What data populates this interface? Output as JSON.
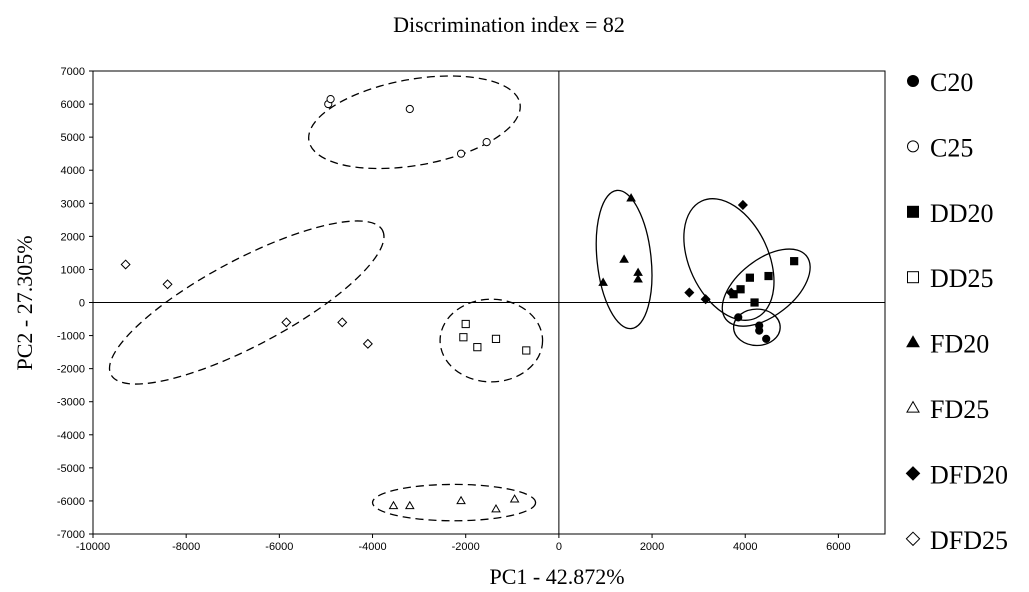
{
  "chart_data": {
    "type": "scatter",
    "title": "Discrimination index = 82",
    "xlabel": "PC1 - 42.872%",
    "ylabel": "PC2 - 27.305%",
    "xlim": [
      -10000,
      7000
    ],
    "ylim": [
      -7000,
      7000
    ],
    "x_ticks": [
      -10000,
      -8000,
      -6000,
      -4000,
      -2000,
      0,
      2000,
      4000,
      6000
    ],
    "y_ticks": [
      7000,
      6000,
      5000,
      4000,
      3000,
      2000,
      1000,
      0,
      -1000,
      -2000,
      -3000,
      -4000,
      -5000,
      -6000,
      -7000
    ],
    "legend_position": "right",
    "series": [
      {
        "name": "C20",
        "marker": "filled-circle",
        "points": [
          [
            3850,
            -450
          ],
          [
            4300,
            -700
          ],
          [
            4300,
            -850
          ],
          [
            4450,
            -1100
          ]
        ]
      },
      {
        "name": "C25",
        "marker": "open-circle",
        "points": [
          [
            -4950,
            6000
          ],
          [
            -4900,
            6150
          ],
          [
            -3200,
            5850
          ],
          [
            -2100,
            4500
          ],
          [
            -1550,
            4850
          ]
        ]
      },
      {
        "name": "DD20",
        "marker": "filled-square",
        "points": [
          [
            3750,
            250
          ],
          [
            3900,
            400
          ],
          [
            4100,
            750
          ],
          [
            4200,
            0
          ],
          [
            4500,
            800
          ],
          [
            5050,
            1250
          ]
        ]
      },
      {
        "name": "DD25",
        "marker": "open-square",
        "points": [
          [
            -2000,
            -650
          ],
          [
            -2050,
            -1050
          ],
          [
            -1750,
            -1350
          ],
          [
            -1350,
            -1100
          ],
          [
            -700,
            -1450
          ]
        ]
      },
      {
        "name": "FD20",
        "marker": "filled-triangle",
        "points": [
          [
            950,
            600
          ],
          [
            1400,
            1300
          ],
          [
            1550,
            3150
          ],
          [
            1700,
            900
          ],
          [
            1700,
            700
          ]
        ]
      },
      {
        "name": "FD25",
        "marker": "open-triangle",
        "points": [
          [
            -3550,
            -6150
          ],
          [
            -3200,
            -6150
          ],
          [
            -2100,
            -6000
          ],
          [
            -1350,
            -6250
          ],
          [
            -950,
            -5950
          ]
        ]
      },
      {
        "name": "DFD20",
        "marker": "filled-diamond",
        "points": [
          [
            2800,
            300
          ],
          [
            3150,
            100
          ],
          [
            3700,
            300
          ],
          [
            3950,
            2950
          ]
        ]
      },
      {
        "name": "DFD25",
        "marker": "open-diamond",
        "points": [
          [
            -9300,
            1150
          ],
          [
            -8400,
            550
          ],
          [
            -5850,
            -600
          ],
          [
            -4650,
            -600
          ],
          [
            -4100,
            -1250
          ]
        ]
      }
    ],
    "ellipses": [
      {
        "group": "C25",
        "style": "dashed",
        "center": [
          -3100,
          5450
        ],
        "rx": 2300,
        "ry": 1300,
        "angle_deg": -10
      },
      {
        "group": "DFD25",
        "style": "dashed",
        "center": [
          -6700,
          0
        ],
        "rx": 3300,
        "ry": 1300,
        "angle_deg": -28
      },
      {
        "group": "DD25",
        "style": "dashed",
        "center": [
          -1450,
          -1150
        ],
        "rx": 1100,
        "ry": 1250,
        "angle_deg": 0
      },
      {
        "group": "FD25",
        "style": "dashed",
        "center": [
          -2250,
          -6050
        ],
        "rx": 1750,
        "ry": 550,
        "angle_deg": 0
      },
      {
        "group": "FD20",
        "style": "solid",
        "center": [
          1400,
          1300
        ],
        "rx": 580,
        "ry": 2100,
        "angle_deg": -6
      },
      {
        "group": "DFD20",
        "style": "solid",
        "center": [
          3650,
          1300
        ],
        "rx": 850,
        "ry": 1950,
        "angle_deg": -25
      },
      {
        "group": "DD20",
        "style": "solid",
        "center": [
          4450,
          450
        ],
        "rx": 1100,
        "ry": 850,
        "angle_deg": -38
      },
      {
        "group": "C20",
        "style": "solid",
        "center": [
          4250,
          -750
        ],
        "rx": 500,
        "ry": 550,
        "angle_deg": 0
      }
    ]
  }
}
